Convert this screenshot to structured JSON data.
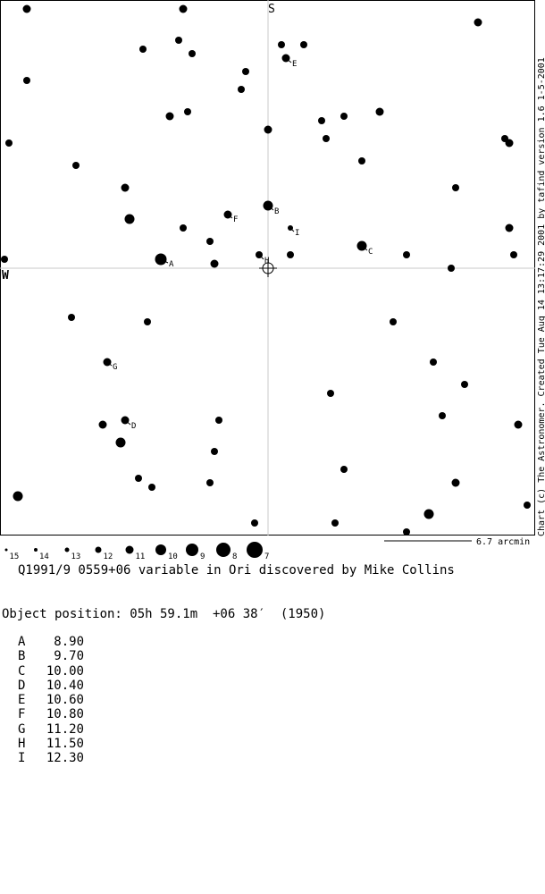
{
  "chart": {
    "credit": "Chart (c) The Astronomer. Created Tue Aug 14 13:17:29 2001 by tafind version 1.6 1-5-2001",
    "north_label": "S",
    "west_label": "W",
    "scale_label": "6.7 arcmin",
    "magnitude_scale": [
      "15",
      "14",
      "13",
      "12",
      "11",
      "10",
      "9",
      "8",
      "7"
    ]
  },
  "labels": [
    "A",
    "B",
    "C",
    "D",
    "E",
    "F",
    "G",
    "H",
    "I"
  ],
  "title": "Q1991/9 0559+06 variable in Ori discovered by Mike Collins",
  "position": "Object position: 05h 59.1m  +06 38′  (1950)",
  "comparison_stars": [
    {
      "label": "A",
      "mag": "8.90"
    },
    {
      "label": "B",
      "mag": "9.70"
    },
    {
      "label": "C",
      "mag": "10.00"
    },
    {
      "label": "D",
      "mag": "10.40"
    },
    {
      "label": "E",
      "mag": "10.60"
    },
    {
      "label": "F",
      "mag": "10.80"
    },
    {
      "label": "G",
      "mag": "11.20"
    },
    {
      "label": "H",
      "mag": "11.50"
    },
    {
      "label": "I",
      "mag": "12.30"
    }
  ]
}
